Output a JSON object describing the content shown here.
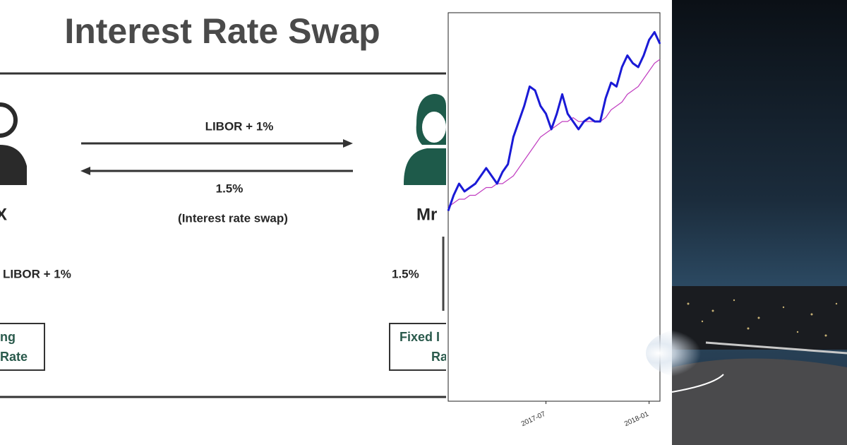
{
  "diagram": {
    "title": "Interest Rate Swap",
    "top_arrow_label": "LIBOR + 1%",
    "bottom_arrow_label": "1.5%",
    "swap_note": "(Interest rate swap)",
    "left_party": "X",
    "right_party": "Mr",
    "left_pays": "LIBOR + 1%",
    "right_pays": "1.5%",
    "left_box": [
      "ng",
      "Rate"
    ],
    "right_box": [
      "Fixed I",
      "Ra"
    ]
  },
  "chart_data": {
    "type": "line",
    "categories": [
      null,
      null,
      null,
      null,
      null,
      null,
      null,
      null,
      null,
      null,
      null,
      null,
      null,
      null,
      null,
      null,
      null,
      null,
      "2017-07",
      null,
      null,
      null,
      null,
      null,
      null,
      null,
      null,
      null,
      null,
      null,
      null,
      null,
      null,
      null,
      null,
      null,
      null,
      "2018-01",
      null,
      null
    ],
    "series": [
      {
        "color": "#1a1ad6",
        "values": [
          49,
          53,
          56,
          54,
          55,
          56,
          58,
          60,
          58,
          56,
          59,
          61,
          68,
          72,
          76,
          81,
          80,
          76,
          74,
          70,
          74,
          79,
          74,
          72,
          70,
          72,
          73,
          72,
          72,
          78,
          82,
          81,
          86,
          89,
          87,
          86,
          89,
          93,
          95,
          92
        ]
      },
      {
        "color": "#c03cc0",
        "values": [
          50,
          51,
          52,
          52,
          53,
          53,
          54,
          55,
          55,
          56,
          56,
          57,
          58,
          60,
          62,
          64,
          66,
          68,
          69,
          70,
          71,
          72,
          72,
          73,
          72,
          72,
          72,
          72,
          72,
          73,
          75,
          76,
          77,
          79,
          80,
          81,
          83,
          85,
          87,
          88
        ]
      }
    ],
    "ylim": [
      0,
      100
    ],
    "grid": false
  }
}
